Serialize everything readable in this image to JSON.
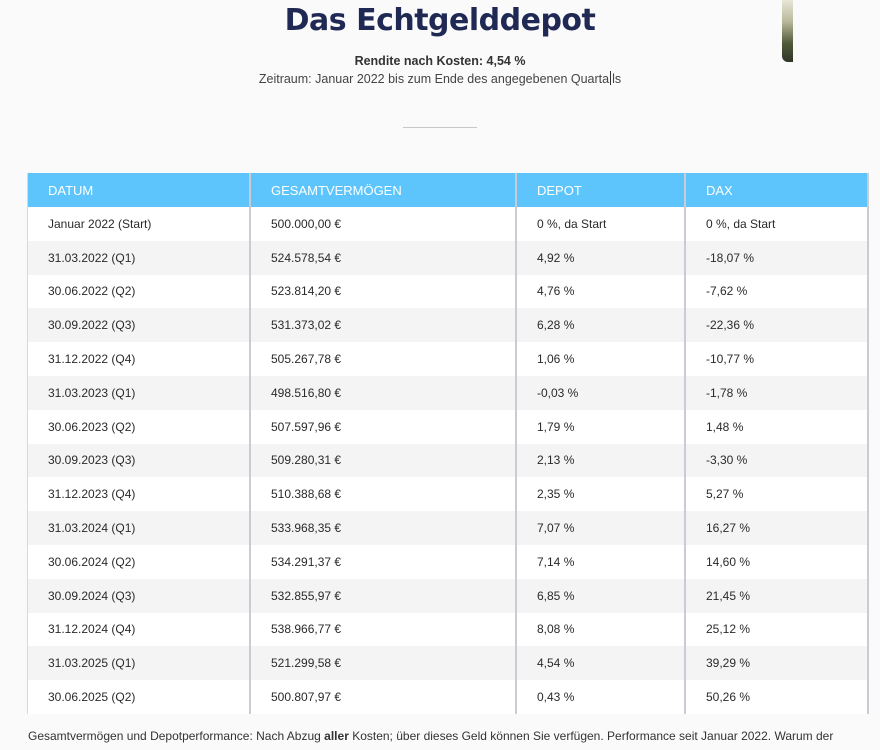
{
  "header": {
    "title": "Das Echtgelddepot",
    "subtitle": "Rendite nach Kosten: 4,54 %",
    "period_before_cursor": "Zeitraum: Januar 2022 bis zum Ende des angegebenen Quarta",
    "period_after_cursor": "ls"
  },
  "table": {
    "columns": [
      "DATUM",
      "GESAMTVERMÖGEN",
      "DEPOT",
      "DAX"
    ],
    "rows": [
      [
        "Januar 2022 (Start)",
        "500.000,00 €",
        "0 %, da Start",
        "0 %, da Start"
      ],
      [
        "31.03.2022 (Q1)",
        "524.578,54 €",
        "4,92 %",
        "-18,07 %"
      ],
      [
        "30.06.2022 (Q2)",
        "523.814,20 €",
        "4,76 %",
        "-7,62 %"
      ],
      [
        "30.09.2022 (Q3)",
        "531.373,02 €",
        "6,28 %",
        "-22,36 %"
      ],
      [
        "31.12.2022 (Q4)",
        "505.267,78 €",
        "1,06 %",
        "-10,77 %"
      ],
      [
        "31.03.2023 (Q1)",
        "498.516,80 €",
        "-0,03 %",
        "-1,78 %"
      ],
      [
        "30.06.2023 (Q2)",
        "507.597,96 €",
        "1,79 %",
        "1,48 %"
      ],
      [
        "30.09.2023 (Q3)",
        "509.280,31 €",
        "2,13 %",
        "-3,30 %"
      ],
      [
        "31.12.2023 (Q4)",
        "510.388,68 €",
        "2,35 %",
        "5,27 %"
      ],
      [
        "31.03.2024 (Q1)",
        "533.968,35 €",
        "7,07 %",
        "16,27 %"
      ],
      [
        "30.06.2024 (Q2)",
        "534.291,37 €",
        "7,14 %",
        "14,60 %"
      ],
      [
        "30.09.2024 (Q3)",
        "532.855,97 €",
        "6,85 %",
        "21,45 %"
      ],
      [
        "31.12.2024 (Q4)",
        "538.966,77 €",
        "8,08 %",
        "25,12 %"
      ],
      [
        "31.03.2025 (Q1)",
        "521.299,58 €",
        "4,54 %",
        "39,29 %"
      ],
      [
        "30.06.2025 (Q2)",
        "500.807,97 €",
        "0,43 %",
        "50,26 %"
      ]
    ]
  },
  "footnote": {
    "part1": "Gesamtvermögen und Depotperformance: Nach Abzug ",
    "emphasis": "aller",
    "part2": " Kosten; über dieses Geld können Sie verfügen. Performance seit Januar 2022. Warum der"
  },
  "colors": {
    "title": "#1f2954",
    "table_header": "#5dc5fc"
  }
}
